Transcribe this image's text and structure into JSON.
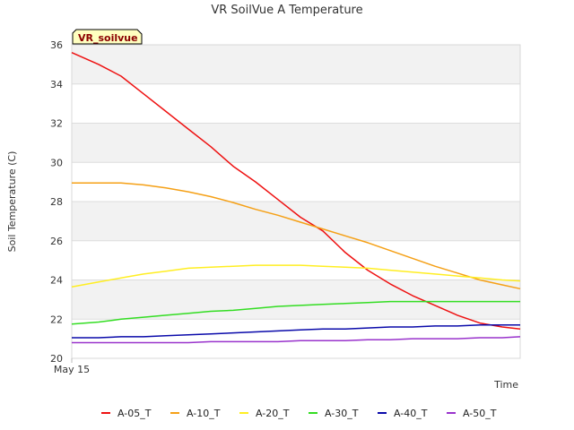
{
  "chart_data": {
    "type": "line",
    "title": "VR SoilVue A Temperature",
    "xlabel": "Time",
    "ylabel": "Soil Temperature (C)",
    "ylim": [
      20,
      36
    ],
    "yticks": [
      20,
      22,
      24,
      26,
      28,
      30,
      32,
      34,
      36
    ],
    "xlim": [
      0,
      100
    ],
    "xticks": [
      {
        "x": 0,
        "label": "May 15"
      }
    ],
    "station_label": "VR_soilvue",
    "grid": true,
    "legend_position": "bottom",
    "x": [
      0,
      6,
      11,
      16,
      21,
      26,
      31,
      36,
      41,
      46,
      51,
      56,
      61,
      66,
      71,
      76,
      81,
      86,
      91,
      96,
      100
    ],
    "series": [
      {
        "name": "A-05_T",
        "color": "#ee1111",
        "values": [
          35.6,
          35.0,
          34.4,
          33.5,
          32.6,
          31.7,
          30.8,
          29.8,
          29.0,
          28.1,
          27.2,
          26.5,
          25.4,
          24.5,
          23.8,
          23.2,
          22.7,
          22.2,
          21.8,
          21.6,
          21.5
        ]
      },
      {
        "name": "A-10_T",
        "color": "#f5a016",
        "values": [
          28.95,
          28.95,
          28.95,
          28.85,
          28.7,
          28.5,
          28.25,
          27.95,
          27.6,
          27.3,
          26.95,
          26.6,
          26.25,
          25.9,
          25.5,
          25.1,
          24.7,
          24.35,
          24.0,
          23.75,
          23.55
        ]
      },
      {
        "name": "A-20_T",
        "color": "#ffee22",
        "values": [
          23.65,
          23.9,
          24.1,
          24.3,
          24.45,
          24.6,
          24.65,
          24.7,
          24.75,
          24.75,
          24.75,
          24.7,
          24.65,
          24.6,
          24.5,
          24.4,
          24.3,
          24.2,
          24.1,
          24.0,
          23.95
        ]
      },
      {
        "name": "A-30_T",
        "color": "#33dd22",
        "values": [
          21.75,
          21.85,
          22.0,
          22.1,
          22.2,
          22.3,
          22.4,
          22.45,
          22.55,
          22.65,
          22.7,
          22.75,
          22.8,
          22.85,
          22.9,
          22.9,
          22.9,
          22.9,
          22.9,
          22.9,
          22.9
        ]
      },
      {
        "name": "A-40_T",
        "color": "#0a0aaa",
        "values": [
          21.05,
          21.05,
          21.1,
          21.1,
          21.15,
          21.2,
          21.25,
          21.3,
          21.35,
          21.4,
          21.45,
          21.5,
          21.5,
          21.55,
          21.6,
          21.6,
          21.65,
          21.65,
          21.7,
          21.7,
          21.7
        ]
      },
      {
        "name": "A-50_T",
        "color": "#9933cc",
        "values": [
          20.8,
          20.8,
          20.8,
          20.8,
          20.8,
          20.8,
          20.85,
          20.85,
          20.85,
          20.85,
          20.9,
          20.9,
          20.9,
          20.95,
          20.95,
          21.0,
          21.0,
          21.0,
          21.05,
          21.05,
          21.1
        ]
      }
    ]
  }
}
